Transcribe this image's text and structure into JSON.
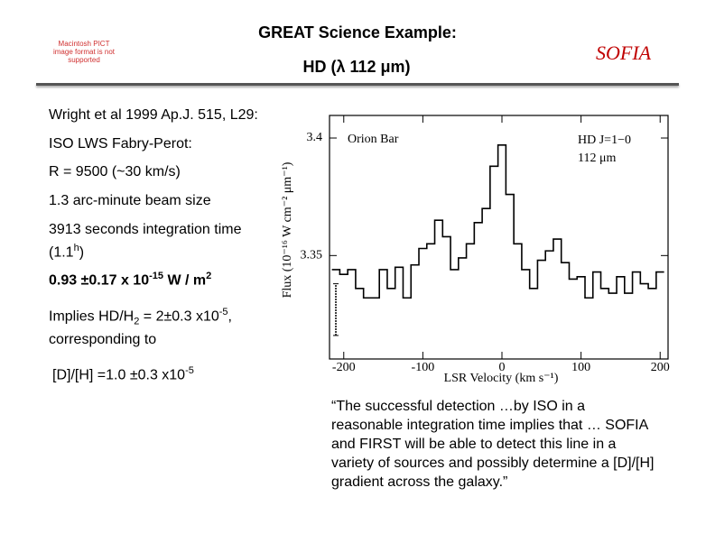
{
  "header": {
    "title": "GREAT Science Example:",
    "subtitle": "HD (λ 112 μm)",
    "logo_text": "Macintosh PICT image format is not supported",
    "brand": "SOFIA"
  },
  "items": [
    {
      "parts": [
        {
          "text": "Wright et al  1999 Ap.J. 515, L29:"
        }
      ]
    },
    {
      "parts": [
        {
          "text": "ISO LWS Fabry-Perot:"
        }
      ]
    },
    {
      "parts": [
        {
          "text": "R = 9500 (~30 km/s)"
        }
      ]
    },
    {
      "parts": [
        {
          "text": "1.3 arc-minute beam size"
        }
      ]
    },
    {
      "parts": [
        {
          "text": "3913 seconds integration time (1.1"
        },
        {
          "text": "h",
          "style": "sup"
        },
        {
          "text": ")"
        }
      ]
    },
    {
      "parts": [
        {
          "text": "0.93 ±0.17 x 10"
        },
        {
          "text": "-15",
          "style": "sup"
        },
        {
          "text": " W / m"
        },
        {
          "text": "2",
          "style": "sup"
        }
      ],
      "bold": true
    },
    {
      "parts": [
        {
          "text": "Implies HD/H"
        },
        {
          "text": "2",
          "style": "sub"
        },
        {
          "text": " = 2±0.3 x10"
        },
        {
          "text": "-5",
          "style": "sup"
        },
        {
          "text": ", corresponding to"
        }
      ]
    },
    {
      "parts": [
        {
          "text": "[D]/[H] =1.0 ±0.3 x10"
        },
        {
          "text": "-5",
          "style": "sup"
        }
      ]
    }
  ],
  "quote": "“The successful detection …by ISO in a reasonable integration time implies that … SOFIA and FIRST will be able to detect this line in a variety of sources and possibly determine a [D]/[H] gradient across the galaxy.”",
  "chart_data": {
    "type": "step",
    "x_label": "LSR Velocity (km s⁻¹)",
    "y_label": "Flux (10⁻¹⁶ W cm⁻² μm⁻¹)",
    "annotations": [
      "Orion Bar",
      "HD J=1−0",
      "112 μm"
    ],
    "x": [
      -210,
      -200,
      -190,
      -180,
      -170,
      -160,
      -150,
      -140,
      -130,
      -120,
      -110,
      -100,
      -90,
      -80,
      -70,
      -60,
      -50,
      -40,
      -30,
      -20,
      -10,
      0,
      10,
      20,
      30,
      40,
      50,
      60,
      70,
      80,
      90,
      100,
      110,
      120,
      130,
      140,
      150,
      160,
      170,
      180,
      190,
      200
    ],
    "values": [
      3.344,
      3.342,
      3.344,
      3.336,
      3.332,
      3.332,
      3.344,
      3.336,
      3.345,
      3.332,
      3.346,
      3.353,
      3.355,
      3.365,
      3.358,
      3.344,
      3.349,
      3.355,
      3.364,
      3.37,
      3.388,
      3.397,
      3.376,
      3.355,
      3.344,
      3.336,
      3.348,
      3.352,
      3.357,
      3.347,
      3.34,
      3.341,
      3.332,
      3.343,
      3.336,
      3.334,
      3.341,
      3.334,
      3.343,
      3.338,
      3.336,
      3.343
    ],
    "error_bar": {
      "x": -210,
      "value": 3.327,
      "error": 0.011
    },
    "color": "#000000",
    "xlim": [
      -218,
      210
    ],
    "ylim": [
      3.306,
      3.4096
    ],
    "xticks": [
      -200,
      -100,
      0,
      100,
      200
    ],
    "yticks": [
      3.35,
      3.4
    ],
    "grid": false
  }
}
